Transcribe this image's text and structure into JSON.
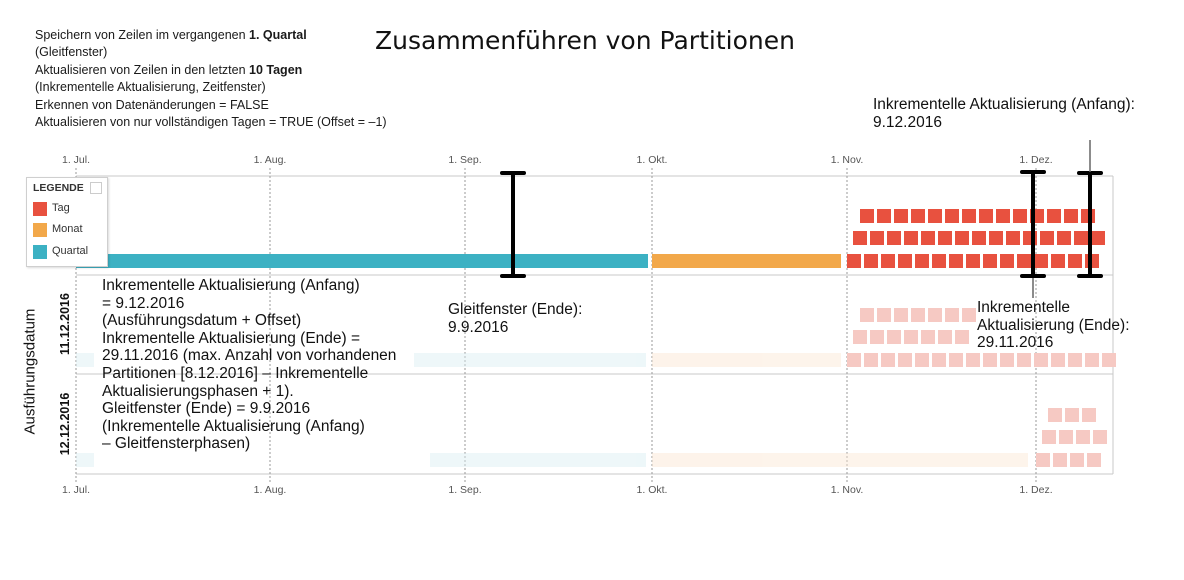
{
  "title": "Zusammenführen von Partitionen",
  "config_lines": [
    {
      "pre": "Speichern von Zeilen im vergangenen ",
      "bold": "1. Quartal"
    },
    {
      "pre": "(Gleitfenster)",
      "bold": ""
    },
    {
      "pre": "Aktualisieren von Zeilen in den letzten ",
      "bold": "10 Tagen"
    },
    {
      "pre": "(Inkrementelle Aktualisierung, Zeitfenster)",
      "bold": ""
    },
    {
      "pre": "Erkennen von Datenänderungen = FALSE",
      "bold": ""
    },
    {
      "pre": "Aktualisieren von nur vollständigen Tagen = TRUE (Offset = –1)",
      "bold": ""
    }
  ],
  "axis_ticks": [
    "1. Jul.",
    "1. Aug.",
    "1. Sep.",
    "1. Okt.",
    "1. Nov.",
    "1. Dez."
  ],
  "y_axis_title": "Ausführungsdatum",
  "rows": [
    "11.12.2016",
    "12.12.2016"
  ],
  "legend": {
    "title": "LEGENDE",
    "items": [
      {
        "label": "Tag",
        "color": "#e8513f"
      },
      {
        "label": "Monat",
        "color": "#f2a84a"
      },
      {
        "label": "Quartal",
        "color": "#3cb1c3"
      }
    ]
  },
  "annotations": {
    "inc_start_top": [
      "Inkrementelle Aktualisierung (Anfang):",
      "9.12.2016"
    ],
    "window_end": [
      "Gleitfenster (Ende):",
      "9.9.2016"
    ],
    "inc_end": [
      "Inkrementelle",
      "Aktualisierung (Ende):",
      "29.11.2016"
    ],
    "explanation": [
      "Inkrementelle Aktualisierung (Anfang)",
      "= 9.12.2016",
      "(Ausführungsdatum + Offset)",
      "Inkrementelle Aktualisierung (Ende) =",
      "29.11.2016 (max. Anzahl von vorhandenen",
      "Partitionen [8.12.2016] – Inkrementelle",
      "Aktualisierungsphasen + 1).",
      "Gleitfenster (Ende) = 9.9.2016",
      "(Inkrementelle Aktualisierung (Anfang)",
      "– Gleitfensterphasen)"
    ]
  },
  "colors": {
    "tag": "#e8513f",
    "monat": "#f2a84a",
    "quartal": "#3cb1c3"
  }
}
